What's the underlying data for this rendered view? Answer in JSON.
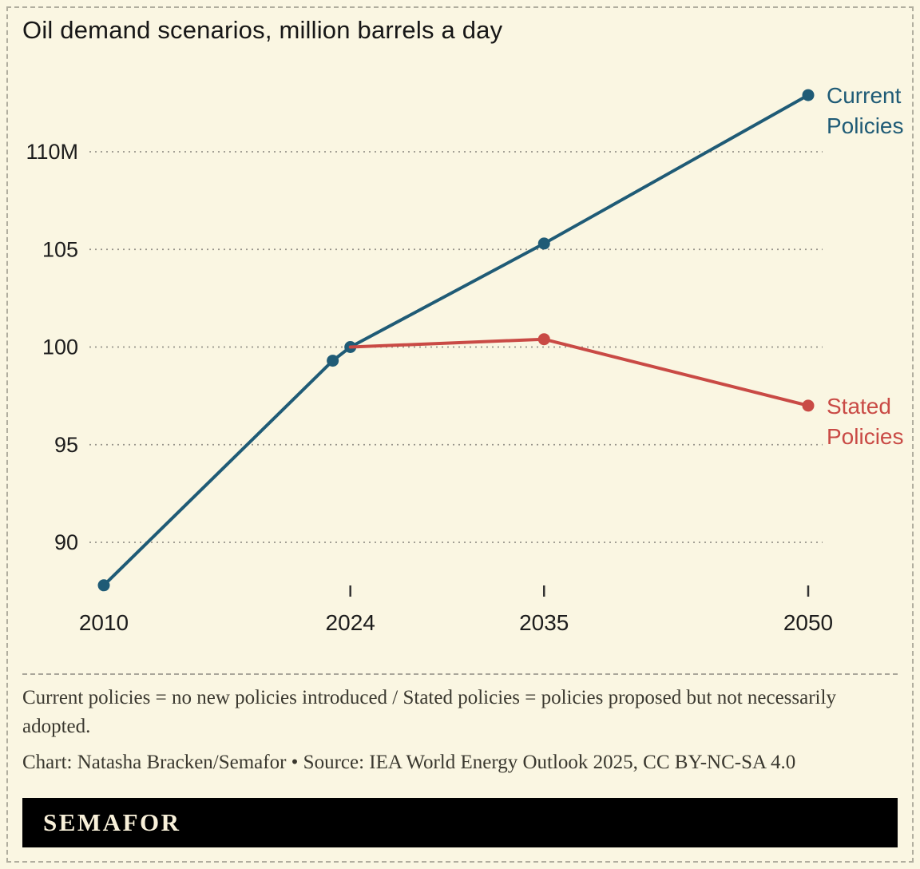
{
  "title": "Oil demand scenarios, million barrels a day",
  "colors": {
    "background": "#faf6e2",
    "current_policies": "#1f5b76",
    "stated_policies": "#c94a45",
    "logo_bar_bg": "#000000",
    "logo_text": "#f8f0d9",
    "gridline": "#97948a"
  },
  "chart_data": {
    "type": "line",
    "title": "Oil demand scenarios, million barrels a day",
    "unit": "million barrels a day",
    "xlim": [
      2010,
      2050
    ],
    "ylim": [
      87.5,
      113.5
    ],
    "grid": "horizontal-dashed",
    "legend_position": "end-of-line",
    "y_ticks": [
      {
        "value": 110,
        "label": "110M"
      },
      {
        "value": 105,
        "label": "105"
      },
      {
        "value": 100,
        "label": "100"
      },
      {
        "value": 95,
        "label": "95"
      },
      {
        "value": 90,
        "label": "90"
      }
    ],
    "x_ticks": [
      {
        "year": 2010,
        "label": "2010",
        "tick": false
      },
      {
        "year": 2024,
        "label": "2024",
        "tick": true
      },
      {
        "year": 2035,
        "label": "2035",
        "tick": true
      },
      {
        "year": 2050,
        "label": "2050",
        "tick": true
      }
    ],
    "series": [
      {
        "name": "Current Policies",
        "color": "#1f5b76",
        "x": [
          2010,
          2023,
          2024,
          2035,
          2050
        ],
        "values": [
          87.8,
          99.3,
          100.0,
          105.3,
          112.9
        ],
        "dots": [
          true,
          true,
          true,
          true,
          true
        ],
        "label_lines": [
          "Current",
          "Policies"
        ]
      },
      {
        "name": "Stated Policies",
        "color": "#c94a45",
        "x": [
          2024,
          2035,
          2050
        ],
        "values": [
          100.0,
          100.4,
          97.0
        ],
        "dots": [
          false,
          true,
          true
        ],
        "label_lines": [
          "Stated",
          "Policies"
        ]
      }
    ]
  },
  "notes": {
    "definitions": "Current policies = no new policies introduced / Stated policies = policies proposed but not necessarily adopted.",
    "credit": "Chart: Natasha Bracken/Semafor • Source: IEA World Energy Outlook 2025, CC BY-NC-SA 4.0"
  },
  "logo": "SEMAFOR"
}
